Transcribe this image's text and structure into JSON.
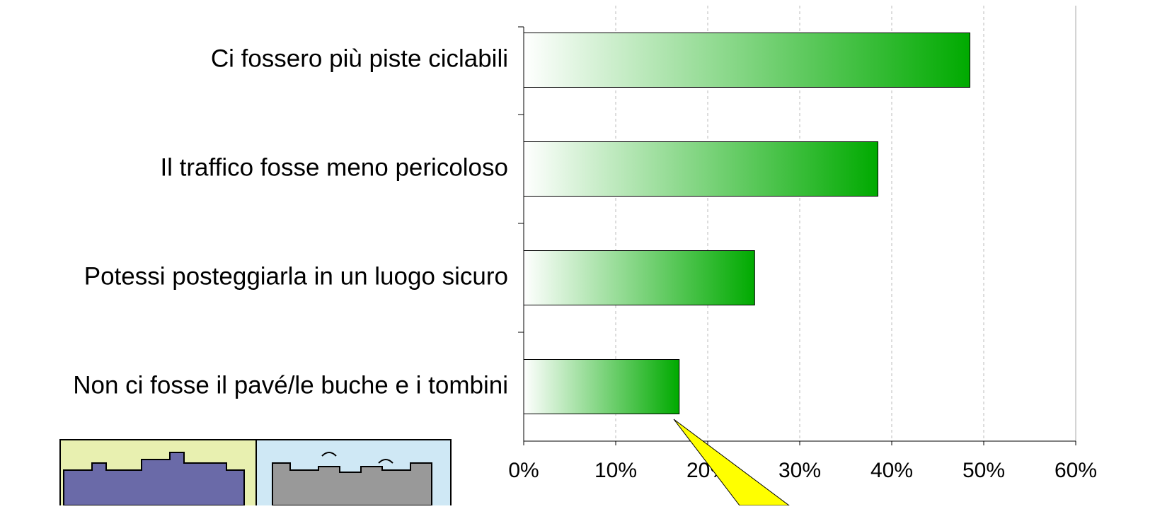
{
  "chart_data": {
    "type": "bar",
    "orientation": "horizontal",
    "categories": [
      "Ci fossero più piste ciclabili",
      "Il traffico fosse meno pericoloso",
      "Potessi posteggiarla in un luogo sicuro",
      "Non ci fosse il pavé/le buche e i tombini"
    ],
    "values": [
      48.5,
      38.5,
      25.1,
      16.9
    ],
    "color": "#00aa00",
    "xlim": [
      0,
      60
    ],
    "xticks": [
      {
        "value": 0,
        "label": "0%"
      },
      {
        "value": 10,
        "label": "10%"
      },
      {
        "value": 20,
        "label": "20%"
      },
      {
        "value": 30,
        "label": "30%"
      },
      {
        "value": 40,
        "label": "40%"
      },
      {
        "value": 50,
        "label": "50%"
      },
      {
        "value": 60,
        "label": "60%"
      }
    ],
    "grid": true
  }
}
